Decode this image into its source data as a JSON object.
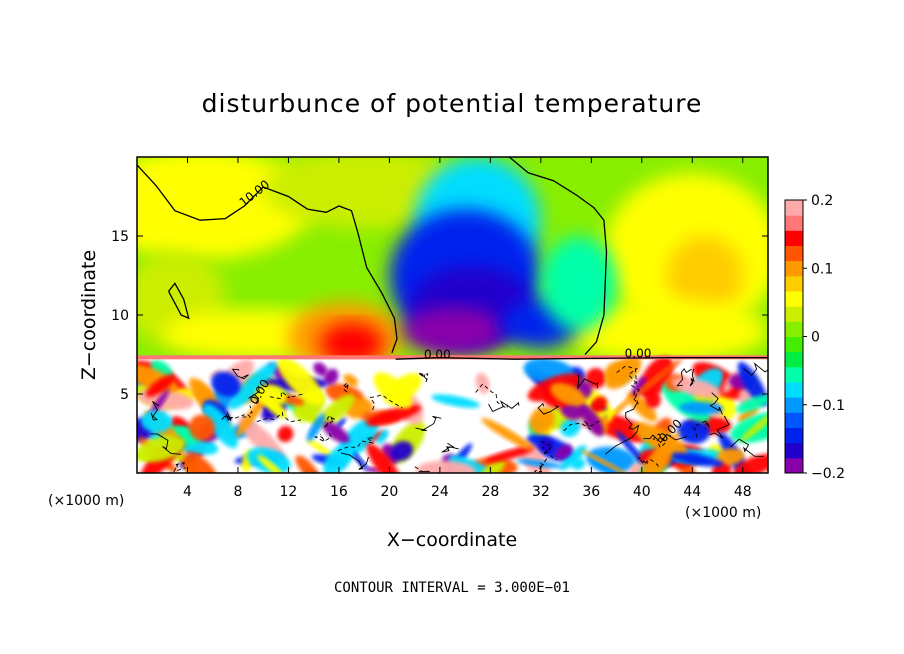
{
  "chart_data": {
    "type": "heatmap",
    "title": "disturbunce of potential temperature",
    "xlabel": "X−coordinate",
    "ylabel": "Z−coordinate",
    "x_unit_left": "(×1000 m)",
    "x_unit_right": "(×1000 m)",
    "xlim": [
      0,
      50
    ],
    "ylim": [
      0,
      20
    ],
    "x_ticks": [
      4,
      8,
      12,
      16,
      20,
      24,
      28,
      32,
      36,
      40,
      44,
      48
    ],
    "y_ticks": [
      5,
      10,
      15
    ],
    "note": "CONTOUR INTERVAL = 3.000E−01",
    "contour_labels": [
      "10.00",
      "0.00",
      "0.00",
      "0.00",
      "0.00"
    ],
    "colorbar": {
      "range": [
        -0.2,
        0.2
      ],
      "ticks": [
        {
          "value": 0.2,
          "label": "0.2"
        },
        {
          "value": 0.1,
          "label": "0.1"
        },
        {
          "value": 0,
          "label": "0"
        },
        {
          "value": -0.1,
          "label": "−0.1"
        },
        {
          "value": -0.2,
          "label": "−0.2"
        }
      ],
      "colors": [
        "#8800aa",
        "#2200cc",
        "#0022ee",
        "#0055ff",
        "#0099ff",
        "#00ddff",
        "#00ffaa",
        "#00ee44",
        "#44ee00",
        "#88ee00",
        "#ccee00",
        "#ffff00",
        "#ffcc00",
        "#ff9900",
        "#ff5500",
        "#ff0000",
        "#ff7777",
        "#ffaaaa"
      ]
    },
    "regions": [
      {
        "name": "upper-background",
        "value": 0.0
      },
      {
        "name": "negative-anomaly-core",
        "x_center": 27,
        "z_center": 10.5,
        "value": -0.2
      },
      {
        "name": "positive-anomaly-core",
        "x_center": 16.5,
        "z_center": 8.5,
        "value": 0.12
      },
      {
        "name": "positive-anomaly-right",
        "x_center": 44,
        "z_center": 12.5,
        "value": 0.07
      },
      {
        "name": "boundary-layer-turbulence",
        "z_range": [
          0,
          7.2
        ],
        "value_range": [
          -0.2,
          0.2
        ]
      }
    ]
  }
}
